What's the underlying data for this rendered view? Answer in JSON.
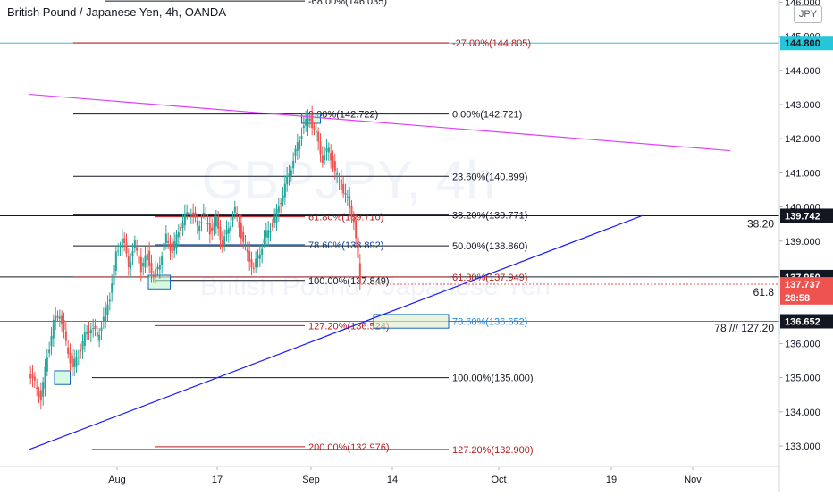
{
  "chart_data": {
    "type": "candlestick",
    "title": "British Pound / Japanese Yen, 4h, OANDA",
    "watermark": "GBPJPY, 4h",
    "watermark_sub": "British Pound / Japanese Yen",
    "currency": "JPY",
    "ylim": [
      132.5,
      146.2
    ],
    "y_ticks": [
      {
        "label": "146.000",
        "value": 146.0
      },
      {
        "label": "145.000",
        "value": 145.0
      },
      {
        "label": "144.000",
        "value": 144.0
      },
      {
        "label": "143.000",
        "value": 143.0
      },
      {
        "label": "142.000",
        "value": 142.0
      },
      {
        "label": "141.000",
        "value": 141.0
      },
      {
        "label": "140.000",
        "value": 140.0
      },
      {
        "label": "139.000",
        "value": 139.0
      },
      {
        "label": "136.000",
        "value": 136.0
      },
      {
        "label": "135.000",
        "value": 135.0
      },
      {
        "label": "134.000",
        "value": 134.0
      },
      {
        "label": "133.000",
        "value": 133.0
      }
    ],
    "x_ticks": [
      {
        "label": "Aug",
        "day": 0
      },
      {
        "label": "17",
        "day": 16
      },
      {
        "label": "Sep",
        "day": 31
      },
      {
        "label": "14",
        "day": 44
      },
      {
        "label": "Oct",
        "day": 61
      },
      {
        "label": "19",
        "day": 79
      },
      {
        "label": "Nov",
        "day": 92
      }
    ],
    "price_tags": [
      {
        "label": "144.800",
        "value": 144.8,
        "bg": "#26c6da",
        "fg": "#131722"
      },
      {
        "label": "139.742",
        "value": 139.742,
        "bg": "#131722",
        "fg": "#ffffff"
      },
      {
        "label": "137.950",
        "value": 137.95,
        "bg": "#131722",
        "fg": "#ffffff"
      },
      {
        "label": "137.737",
        "value": 137.737,
        "bg": "#ef5350",
        "fg": "#ffffff"
      },
      {
        "label": "28:58",
        "value": 137.35,
        "bg": "#ef5350",
        "fg": "#ffffff"
      },
      {
        "label": "136.652",
        "value": 136.652,
        "bg": "#131722",
        "fg": "#ffffff"
      }
    ],
    "side_labels": [
      {
        "label": "38.20",
        "value": 139.5
      },
      {
        "label": "61.8",
        "value": 137.5
      },
      {
        "label": "78 /// 127.20",
        "value": 136.45
      }
    ],
    "fib_levels": [
      {
        "label": "-68.00%(146.035)",
        "value": 146.035,
        "color": "#131722",
        "x1": -2,
        "x2": 30
      },
      {
        "label": "-27.00%(144.805)",
        "value": 144.805,
        "color": "#b71c1c",
        "x1": -7,
        "x2": 53
      },
      {
        "label": "0.00%(142.722)",
        "value": 142.722,
        "color": "#131722",
        "x1": -7,
        "x2": 30
      },
      {
        "label": "0.00%(142.721)",
        "value": 142.721,
        "color": "#131722",
        "x1": 30,
        "x2": 53
      },
      {
        "label": "23.60%(140.899)",
        "value": 140.899,
        "color": "#131722",
        "x1": -7,
        "x2": 53
      },
      {
        "label": "61.80%(139.710)",
        "value": 139.71,
        "color": "#b71c1c",
        "x1": 6,
        "x2": 30
      },
      {
        "label": "38.20%(139.771)",
        "value": 139.771,
        "color": "#131722",
        "x1": -7,
        "x2": 53
      },
      {
        "label": "78.60%(138.892)",
        "value": 138.892,
        "color": "#0d47a1",
        "x1": 6,
        "x2": 30
      },
      {
        "label": "50.00%(138.860)",
        "value": 138.86,
        "color": "#131722",
        "x1": -7,
        "x2": 53
      },
      {
        "label": "100.00%(137.849)",
        "value": 137.849,
        "color": "#131722",
        "x1": 6,
        "x2": 30
      },
      {
        "label": "61.80%(137.949)",
        "value": 137.949,
        "color": "#b71c1c",
        "x1": -7,
        "x2": 53
      },
      {
        "label": "78.60%(136.652)",
        "value": 136.652,
        "color": "#1e88e5",
        "x1": -7,
        "x2": 53
      },
      {
        "label": "127.20%(136.524)",
        "value": 136.524,
        "color": "#b71c1c",
        "x1": 6,
        "x2": 30
      },
      {
        "label": "100.00%(135.000)",
        "value": 135.0,
        "color": "#131722",
        "x1": -4,
        "x2": 53
      },
      {
        "label": "200.00%(132.976)",
        "value": 132.976,
        "color": "#b71c1c",
        "x1": 6,
        "x2": 30
      },
      {
        "label": "127.20%(132.900)",
        "value": 132.9,
        "color": "#b71c1c",
        "x1": -4,
        "x2": 53
      }
    ],
    "horizontal_lines": [
      {
        "value": 144.8,
        "color": "#26c6da"
      },
      {
        "value": 139.742,
        "color": "#131722"
      },
      {
        "value": 137.95,
        "color": "#131722"
      },
      {
        "value": 136.652,
        "color": "#1e88e5"
      }
    ],
    "trendlines": [
      {
        "color": "#e040fb",
        "from": [
          -14,
          143.3
        ],
        "to": [
          98,
          141.65
        ]
      },
      {
        "color": "#1a1aff",
        "from": [
          -14,
          132.9
        ],
        "to": [
          84,
          139.75
        ]
      }
    ],
    "zones": [
      {
        "from_day": 29.5,
        "to_day": 32.5,
        "high": 142.72,
        "low": 142.45,
        "fill": "#b9f6ca",
        "stroke": "#1565c0"
      },
      {
        "from_day": 5,
        "to_day": 8.5,
        "high": 138.0,
        "low": 137.6,
        "fill": "#b9f6ca",
        "stroke": "#1565c0"
      },
      {
        "from_day": -10,
        "to_day": -7.5,
        "high": 135.2,
        "low": 134.8,
        "fill": "#b9f6ca",
        "stroke": "#1565c0"
      },
      {
        "from_day": 41,
        "to_day": 53,
        "high": 136.85,
        "low": 136.45,
        "fill": "#dcedc8",
        "stroke": "#1565c0"
      }
    ],
    "price_path": [
      [
        -14,
        135.2
      ],
      [
        -13,
        134.8
      ],
      [
        -12,
        134.4
      ],
      [
        -11,
        135.6
      ],
      [
        -10,
        136.6
      ],
      [
        -9,
        136.9
      ],
      [
        -8,
        136.0
      ],
      [
        -7,
        135.3
      ],
      [
        -6,
        135.7
      ],
      [
        -5,
        136.2
      ],
      [
        -4,
        136.5
      ],
      [
        -3,
        136.2
      ],
      [
        -2,
        136.7
      ],
      [
        -1,
        137.4
      ],
      [
        0,
        138.6
      ],
      [
        1,
        139.1
      ],
      [
        2,
        138.3
      ],
      [
        3,
        138.9
      ],
      [
        4,
        138.2
      ],
      [
        5,
        138.6
      ],
      [
        6,
        137.9
      ],
      [
        7,
        138.4
      ],
      [
        8,
        139.1
      ],
      [
        9,
        138.7
      ],
      [
        10,
        139.3
      ],
      [
        11,
        139.7
      ],
      [
        12,
        139.9
      ],
      [
        13,
        139.4
      ],
      [
        14,
        139.8
      ],
      [
        15,
        139.3
      ],
      [
        16,
        139.6
      ],
      [
        17,
        138.9
      ],
      [
        18,
        139.4
      ],
      [
        19,
        139.9
      ],
      [
        20,
        139.2
      ],
      [
        21,
        138.6
      ],
      [
        22,
        138.2
      ],
      [
        23,
        138.7
      ],
      [
        24,
        139.2
      ],
      [
        25,
        139.5
      ],
      [
        26,
        140.0
      ],
      [
        27,
        140.6
      ],
      [
        28,
        141.2
      ],
      [
        29,
        141.8
      ],
      [
        30,
        142.4
      ],
      [
        31,
        142.6
      ],
      [
        32,
        142.1
      ],
      [
        33,
        141.4
      ],
      [
        34,
        141.7
      ],
      [
        35,
        141.0
      ],
      [
        36,
        140.6
      ],
      [
        37,
        140.2
      ],
      [
        38,
        139.6
      ],
      [
        39,
        137.8
      ]
    ]
  }
}
